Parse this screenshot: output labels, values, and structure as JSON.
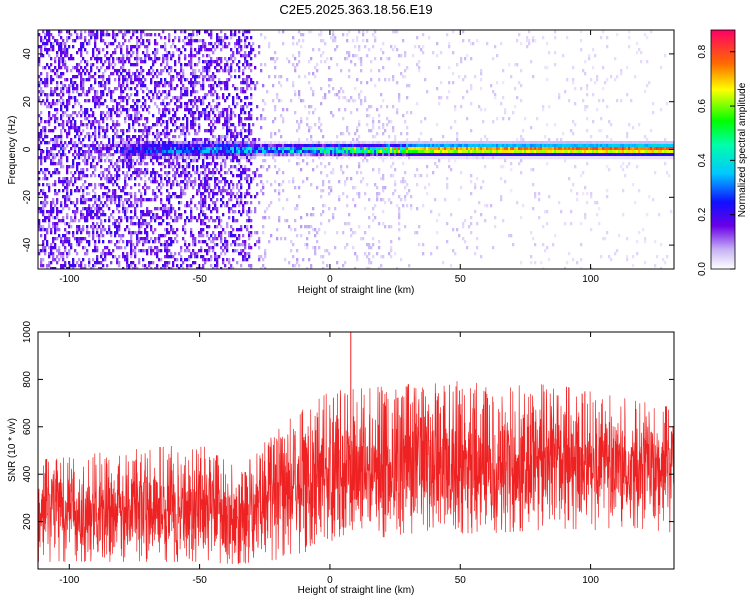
{
  "title": "C2E5.2025.363.18.56.E19",
  "colors": {
    "signal": "#ee2222",
    "axis": "#000000",
    "background": "#ffffff"
  },
  "chart_data": [
    {
      "type": "heatmap",
      "title": "C2E5.2025.363.18.56.E19",
      "xlabel": "Height of straight line (km)",
      "ylabel": "Frequency (Hz)",
      "xlim": [
        -112,
        132
      ],
      "ylim": [
        -50,
        50
      ],
      "xticks": [
        "-100",
        "-50",
        "0",
        "50",
        "100"
      ],
      "yticks": [
        "-40",
        "-20",
        "0",
        "20",
        "40"
      ],
      "colorbar": {
        "label": "Normalized spectral amplitude",
        "range": [
          0.0,
          0.88
        ],
        "ticks": [
          "0.0",
          "0.2",
          "0.4",
          "0.6",
          "0.8"
        ],
        "colormap": "rainbow (white to violet, blue, cyan, green, yellow, red)"
      },
      "features": {
        "noise_floor_amplitude_by_height": [
          {
            "height": -112,
            "amplitude": 0.12
          },
          {
            "height": -30,
            "amplitude": 0.12
          },
          {
            "height": -25,
            "amplitude": 0.05
          },
          {
            "height": 132,
            "amplitude": 0.02
          }
        ],
        "ridge_frequency_hz": 0,
        "ridge_amplitude_by_height": [
          {
            "height": -80,
            "amplitude": 0.25
          },
          {
            "height": -55,
            "amplitude": 0.35
          },
          {
            "height": -28,
            "amplitude": 0.4
          },
          {
            "height": 0,
            "amplitude": 0.55
          },
          {
            "height": 10,
            "amplitude": 0.62
          },
          {
            "height": 40,
            "amplitude": 0.78
          },
          {
            "height": 132,
            "amplitude": 0.85
          }
        ]
      }
    },
    {
      "type": "line",
      "xlabel": "Height of straight line (km)",
      "ylabel": "SNR (10 * v/v)",
      "xlim": [
        -112,
        132
      ],
      "ylim": [
        0,
        1000
      ],
      "xticks": [
        "-100",
        "-50",
        "0",
        "50",
        "100"
      ],
      "yticks": [
        "200",
        "400",
        "600",
        "800",
        "1000"
      ],
      "series": [
        {
          "color": "#ee2222",
          "envelope": [
            {
              "x": -112,
              "low": 30,
              "mean": 250,
              "high": 460
            },
            {
              "x": -80,
              "low": 30,
              "mean": 250,
              "high": 500
            },
            {
              "x": -50,
              "low": 30,
              "mean": 270,
              "high": 530
            },
            {
              "x": -35,
              "low": 20,
              "mean": 200,
              "high": 420
            },
            {
              "x": -20,
              "low": 40,
              "mean": 320,
              "high": 600
            },
            {
              "x": 0,
              "low": 100,
              "mean": 420,
              "high": 750
            },
            {
              "x": 30,
              "low": 150,
              "mean": 440,
              "high": 780
            },
            {
              "x": 60,
              "low": 150,
              "mean": 450,
              "high": 800
            },
            {
              "x": 90,
              "low": 170,
              "mean": 460,
              "high": 770
            },
            {
              "x": 132,
              "low": 150,
              "mean": 430,
              "high": 680
            }
          ],
          "peak": {
            "x": 8,
            "y": 1000
          }
        }
      ]
    }
  ]
}
